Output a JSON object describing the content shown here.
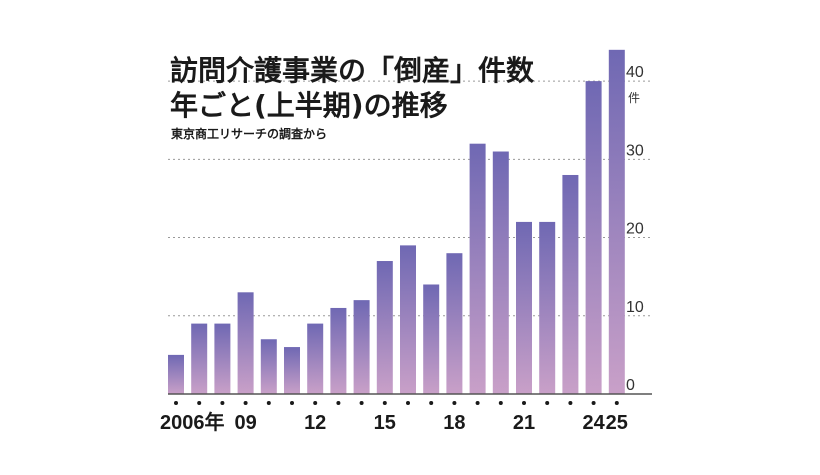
{
  "chart_data": {
    "type": "bar",
    "title_lines": [
      "訪問介護事業の「倒産」件数",
      "年ごと(上半期)の推移"
    ],
    "source": "東京商工リサーチの調査から",
    "y_unit": "件",
    "ylim": [
      0,
      45
    ],
    "yticks": [
      0,
      10,
      20,
      30,
      40
    ],
    "categories": [
      "2006",
      "2007",
      "2008",
      "2009",
      "2010",
      "2011",
      "2012",
      "2013",
      "2014",
      "2015",
      "2016",
      "2017",
      "2018",
      "2019",
      "2020",
      "2021",
      "2022",
      "2023",
      "2024",
      "2025"
    ],
    "values": [
      5,
      9,
      9,
      13,
      7,
      6,
      9,
      11,
      12,
      17,
      19,
      14,
      18,
      32,
      31,
      22,
      22,
      28,
      40,
      44
    ],
    "x_tick_labels": [
      {
        "index": 0,
        "label": "2006年"
      },
      {
        "index": 3,
        "label": "09"
      },
      {
        "index": 6,
        "label": "12"
      },
      {
        "index": 9,
        "label": "15"
      },
      {
        "index": 12,
        "label": "18"
      },
      {
        "index": 15,
        "label": "21"
      },
      {
        "index": 18,
        "label": "24"
      },
      {
        "index": 19,
        "label": "25"
      }
    ],
    "grid": "dotted horizontal",
    "colors": {
      "bar_top": "#6f68b3",
      "bar_bottom": "#c9a0c8",
      "axis": "#555555",
      "grid": "#9a9a9a"
    }
  }
}
